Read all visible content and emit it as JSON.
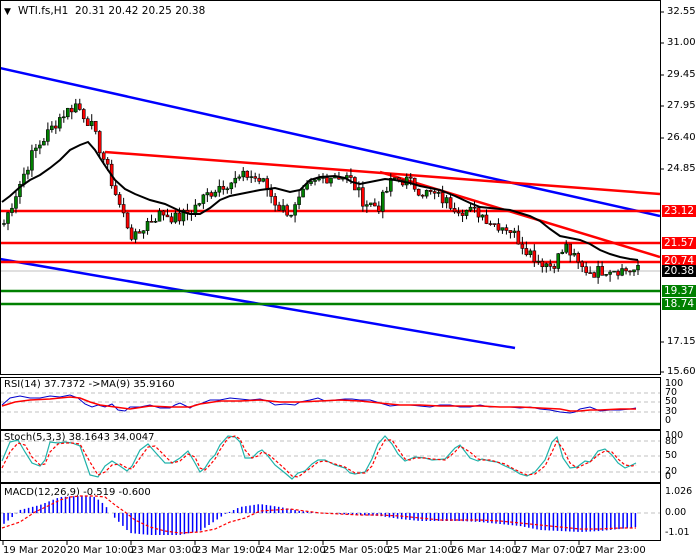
{
  "header": {
    "symbol": "WTI.fs,H1",
    "ohlc": "20.31 20.42 20.25 20.38"
  },
  "price_axis": {
    "ticks": [
      "32.55",
      "31.00",
      "29.45",
      "27.95",
      "26.40",
      "24.85",
      "17.15",
      "15.60"
    ]
  },
  "price_tags": [
    {
      "label": "23.12",
      "color": "#ff0000"
    },
    {
      "label": "21.57",
      "color": "#ff0000"
    },
    {
      "label": "20.74",
      "color": "#ff0000"
    },
    {
      "label": "20.38",
      "color": "#000000"
    },
    {
      "label": "19.37",
      "color": "#008000"
    },
    {
      "label": "18.74",
      "color": "#008000"
    }
  ],
  "rsi": {
    "title": "RSI(14) 37.7372  ->MA(9) 35.9160",
    "ticks": [
      "100",
      "70",
      "50",
      "30",
      "0"
    ]
  },
  "stoch": {
    "title": "Stoch(5,3,3) 38.1643 34.0047",
    "ticks": [
      "100",
      "80",
      "50",
      "20",
      "0"
    ]
  },
  "macd": {
    "title": "MACD(12,26,9) -0.519 -0.600",
    "ticks": [
      "1.026",
      "0.00",
      "-1.01"
    ]
  },
  "time_axis": {
    "labels": [
      "19 Mar 2020",
      "20 Mar 10:00",
      "23 Mar 03:00",
      "23 Mar 19:00",
      "24 Mar 12:00",
      "25 Mar 05:00",
      "25 Mar 21:00",
      "26 Mar 14:00",
      "27 Mar 07:00",
      "27 Mar 23:00"
    ]
  },
  "chart_data": {
    "type": "candlestick",
    "title": "WTI.fs,H1",
    "ohlc_last": {
      "open": 20.31,
      "high": 20.42,
      "low": 20.25,
      "close": 20.38
    },
    "ylim": [
      15.6,
      32.55
    ],
    "x_labels": [
      "19 Mar 2020",
      "20 Mar 10:00",
      "23 Mar 03:00",
      "23 Mar 19:00",
      "24 Mar 12:00",
      "25 Mar 05:00",
      "25 Mar 21:00",
      "26 Mar 14:00",
      "27 Mar 07:00",
      "27 Mar 23:00"
    ],
    "close_series_approx": [
      22.6,
      24.3,
      25.9,
      26.8,
      27.7,
      28.2,
      27.3,
      25.5,
      23.5,
      21.8,
      22.7,
      23.1,
      22.8,
      23.2,
      23.9,
      24.4,
      24.6,
      24.9,
      24.5,
      23.4,
      23.1,
      24.2,
      24.7,
      24.9,
      24.7,
      23.6,
      23.4,
      24.7,
      24.6,
      24.1,
      23.9,
      23.5,
      23.2,
      23.1,
      22.6,
      22.4,
      21.6,
      20.9,
      20.6,
      21.5,
      20.5,
      20.3,
      20.5,
      20.4,
      20.38
    ],
    "horizontal_levels": [
      {
        "value": 23.12,
        "color": "red"
      },
      {
        "value": 21.57,
        "color": "red"
      },
      {
        "value": 20.74,
        "color": "red"
      },
      {
        "value": 19.37,
        "color": "green"
      },
      {
        "value": 18.74,
        "color": "green"
      }
    ],
    "trendlines": [
      {
        "color": "blue",
        "from": [
          0,
          29.8
        ],
        "to": [
          660,
          23.0
        ]
      },
      {
        "color": "blue",
        "from": [
          0,
          20.9
        ],
        "to": [
          515,
          15.6
        ]
      },
      {
        "color": "red",
        "from": [
          105,
          25.9
        ],
        "to": [
          660,
          24.2
        ]
      },
      {
        "color": "red",
        "from": [
          380,
          24.9
        ],
        "to": [
          660,
          20.9
        ]
      }
    ],
    "moving_average": {
      "color": "black",
      "approx": "smooth MA tracking price, 26.3 peak near 20 Mar, ending ~20.7"
    },
    "indicators": [
      {
        "name": "RSI(14)",
        "value": 37.7372,
        "ma_name": "MA(9)",
        "ma_value": 35.916,
        "ylim": [
          0,
          100
        ],
        "levels": [
          30,
          50,
          70
        ]
      },
      {
        "name": "Stoch(5,3,3)",
        "main": 38.1643,
        "signal": 34.0047,
        "ylim": [
          0,
          100
        ],
        "levels": [
          20,
          50,
          80
        ]
      },
      {
        "name": "MACD(12,26,9)",
        "main": -0.519,
        "signal": -0.6,
        "ylim": [
          -1.01,
          1.026
        ],
        "levels": [
          0
        ]
      }
    ]
  }
}
